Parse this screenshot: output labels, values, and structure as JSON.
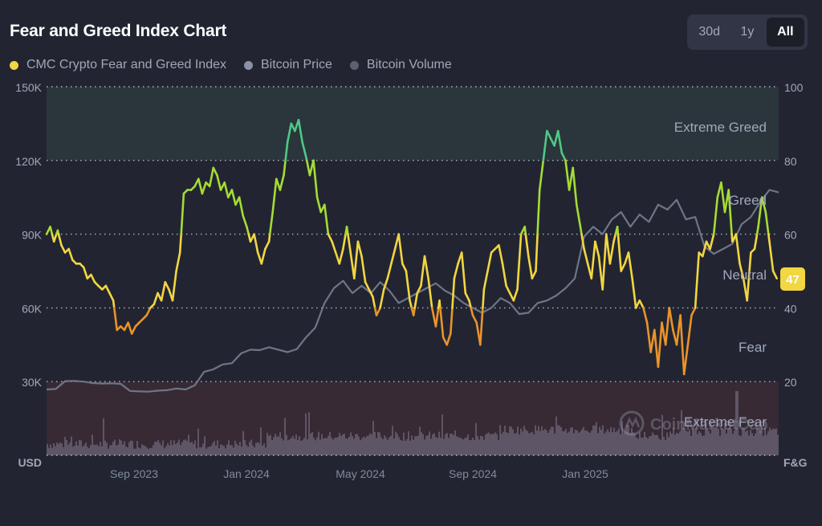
{
  "header": {
    "title": "Fear and Greed Index Chart"
  },
  "legend": [
    {
      "label": "CMC Crypto Fear and Greed Index",
      "color": "#f2d642"
    },
    {
      "label": "Bitcoin Price",
      "color": "#8a92a8"
    },
    {
      "label": "Bitcoin Volume",
      "color": "#5c6070"
    }
  ],
  "range_selector": {
    "options": [
      "30d",
      "1y",
      "All"
    ],
    "selected": "All"
  },
  "current_value_badge": "47",
  "watermark": "CoinMarketCap",
  "colors": {
    "extreme_fear": "#e4474b",
    "fear": "#e9942b",
    "neutral": "#f2d642",
    "greed": "#a5dc34",
    "extreme_greed": "#4fc886",
    "price": "#6f7588",
    "volume": "#5e5566",
    "greed_band_bg": "#2a363b",
    "fear_band_bg": "#372a34"
  },
  "chart_data": {
    "type": "line",
    "title": "Fear and Greed Index Chart",
    "left_axis": {
      "label": "USD",
      "ticks": [
        "150K",
        "120K",
        "90K",
        "60K",
        "30K"
      ],
      "range": [
        0,
        150000
      ]
    },
    "right_axis": {
      "label": "F&G",
      "ticks": [
        "100",
        "80",
        "60",
        "40",
        "20"
      ],
      "range": [
        0,
        100
      ]
    },
    "x_ticks": [
      "Sep 2023",
      "Jan 2024",
      "May 2024",
      "Sep 2024",
      "Jan 2025"
    ],
    "zones": [
      {
        "label": "Extreme Greed",
        "from": 80,
        "to": 100
      },
      {
        "label": "Greed",
        "from": 60,
        "to": 80
      },
      {
        "label": "Neutral",
        "from": 40,
        "to": 60
      },
      {
        "label": "Fear",
        "from": 20,
        "to": 40
      },
      {
        "label": "Extreme Fear",
        "from": 0,
        "to": 20
      }
    ],
    "grid": true,
    "legend_position": "top-left",
    "x_range_days": [
      0,
      790
    ],
    "fg_series": {
      "name": "CMC Crypto Fear and Greed Index",
      "t": [
        0,
        4,
        8,
        12,
        16,
        20,
        24,
        28,
        32,
        36,
        40,
        44,
        48,
        52,
        56,
        60,
        64,
        68,
        72,
        76,
        80,
        84,
        88,
        92,
        96,
        100,
        104,
        108,
        112,
        116,
        120,
        124,
        128,
        132,
        136,
        140,
        144,
        148,
        152,
        156,
        160,
        164,
        168,
        172,
        176,
        180,
        184,
        188,
        192,
        196,
        200,
        204,
        208,
        212,
        216,
        220,
        224,
        228,
        232,
        236,
        240,
        244,
        248,
        252,
        256,
        260,
        264,
        268,
        272,
        276,
        280,
        284,
        288,
        292,
        296,
        300,
        304,
        308,
        312,
        316,
        320,
        324,
        328,
        332,
        336,
        340,
        344,
        348,
        352,
        356,
        360,
        364,
        368,
        372,
        376,
        380,
        384,
        388,
        392,
        396,
        400,
        404,
        408,
        412,
        416,
        420,
        424,
        428,
        432,
        436,
        440,
        444,
        448,
        452,
        456,
        460,
        464,
        468,
        472,
        476,
        480,
        484,
        488,
        492,
        496,
        500,
        504,
        508,
        512,
        516,
        520,
        524,
        528,
        532,
        536,
        540,
        544,
        548,
        552,
        556,
        560,
        564,
        568,
        572,
        576,
        580,
        584,
        588,
        592,
        596,
        600,
        604,
        608,
        612,
        616,
        620,
        624,
        628,
        632,
        636,
        640,
        644,
        648,
        652,
        656,
        660,
        664,
        668,
        672,
        676,
        680,
        684,
        688,
        692,
        696,
        700,
        704,
        708,
        712,
        716,
        720,
        724,
        728,
        732,
        736,
        740,
        744,
        748,
        752,
        756,
        760,
        764,
        768,
        772,
        776,
        780,
        784,
        788
      ],
      "values": [
        60,
        62,
        58,
        61,
        57,
        55,
        56,
        53,
        52,
        52,
        51,
        48,
        49,
        47,
        46,
        45,
        46,
        44,
        42,
        34,
        35,
        34,
        36,
        33,
        35,
        36,
        37,
        38,
        40,
        41,
        44,
        42,
        47,
        45,
        42,
        50,
        55,
        71,
        72,
        72,
        73,
        75,
        71,
        74,
        73,
        78,
        76,
        72,
        74,
        70,
        72,
        68,
        70,
        65,
        62,
        58,
        60,
        55,
        52,
        56,
        58,
        66,
        75,
        72,
        76,
        85,
        90,
        88,
        91,
        85,
        81,
        76,
        80,
        70,
        66,
        68,
        60,
        58,
        55,
        52,
        56,
        62,
        55,
        48,
        58,
        54,
        47,
        45,
        43,
        38,
        40,
        45,
        48,
        52,
        56,
        60,
        52,
        50,
        42,
        38,
        44,
        46,
        54,
        48,
        40,
        35,
        42,
        32,
        30,
        33,
        48,
        52,
        55,
        44,
        42,
        38,
        36,
        30,
        45,
        50,
        55,
        56,
        57,
        52,
        46,
        44,
        42,
        45,
        60,
        62,
        54,
        48,
        50,
        72,
        80,
        88,
        86,
        84,
        88,
        82,
        80,
        72,
        78,
        68,
        62,
        56,
        52,
        48,
        58,
        54,
        45,
        60,
        52,
        58,
        62,
        50,
        52,
        55,
        48,
        40,
        42,
        40,
        36,
        28,
        34,
        24,
        36,
        30,
        40,
        34,
        30,
        38,
        22,
        30,
        38,
        40,
        55,
        54,
        58,
        56,
        60,
        70,
        74,
        66,
        72,
        58,
        60,
        52,
        48,
        42,
        55,
        56,
        62,
        70,
        66,
        58,
        50,
        48,
        47
      ]
    },
    "price_series": {
      "name": "Bitcoin Price",
      "unit": "USD",
      "t": [
        0,
        10,
        20,
        30,
        40,
        50,
        60,
        70,
        80,
        90,
        100,
        110,
        120,
        130,
        140,
        150,
        160,
        170,
        180,
        190,
        200,
        210,
        220,
        230,
        240,
        250,
        260,
        270,
        280,
        290,
        300,
        310,
        320,
        330,
        340,
        350,
        360,
        370,
        380,
        390,
        400,
        410,
        420,
        430,
        440,
        450,
        460,
        470,
        480,
        490,
        500,
        510,
        520,
        530,
        540,
        550,
        560,
        570,
        580,
        590,
        600,
        610,
        620,
        630,
        640,
        650,
        660,
        670,
        680,
        690,
        700,
        710,
        720,
        730,
        740,
        750,
        760,
        770,
        780,
        790
      ],
      "values": [
        26800,
        27000,
        30200,
        30300,
        30000,
        29400,
        29200,
        29300,
        29100,
        26200,
        26000,
        25900,
        26300,
        26500,
        27200,
        26800,
        28500,
        34000,
        35000,
        37000,
        37500,
        41500,
        43000,
        42800,
        44000,
        43000,
        42000,
        43200,
        48000,
        52000,
        62000,
        68000,
        71000,
        66000,
        69000,
        66000,
        70500,
        67000,
        62000,
        64000,
        66000,
        68000,
        70000,
        67000,
        65000,
        62000,
        60000,
        58000,
        60000,
        64000,
        62000,
        57500,
        58000,
        62000,
        63000,
        65000,
        68000,
        72000,
        89000,
        93000,
        90000,
        96000,
        99000,
        93000,
        98000,
        95000,
        102000,
        100000,
        104000,
        96000,
        97000,
        85000,
        82000,
        84000,
        86000,
        94000,
        97000,
        103000,
        108000,
        107000
      ]
    },
    "volume_series": {
      "name": "Bitcoin Volume",
      "note": "relative bars along the bottom band"
    }
  }
}
